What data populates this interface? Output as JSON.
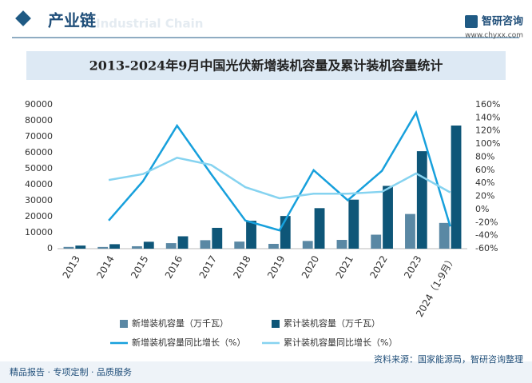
{
  "header": {
    "section": "产业链",
    "section_en": "Industrial Chain",
    "brand": "智研咨询",
    "url": "www.chyxx.com"
  },
  "chart_data": {
    "type": "bar",
    "title": "2013-2024年9月中国光伏新增装机容量及累计装机容量统计",
    "categories": [
      "2013",
      "2014",
      "2015",
      "2016",
      "2017",
      "2018",
      "2019",
      "2020",
      "2021",
      "2022",
      "2023",
      "2024（1-9月）"
    ],
    "series": [
      {
        "name": "新增装机容量（万千瓦）",
        "type": "bar",
        "color": "#5a88a4",
        "values": [
          1095,
          1060,
          1513,
          3454,
          5306,
          4426,
          3011,
          4820,
          5488,
          8741,
          21688,
          16088
        ]
      },
      {
        "name": "累计装机容量（万千瓦）",
        "type": "bar",
        "color": "#0e5678",
        "values": [
          1942,
          2805,
          4318,
          7742,
          13025,
          17446,
          20430,
          25343,
          30656,
          39261,
          60949,
          77000
        ]
      },
      {
        "name": "新增装机容量同比增长（%）",
        "type": "line",
        "axis": "y2",
        "color": "#17a0dc",
        "values": [
          null,
          -17,
          43,
          128,
          54,
          -17,
          -32,
          60,
          14,
          59,
          148,
          -26
        ]
      },
      {
        "name": "累计装机容量同比增长（%）",
        "type": "line",
        "axis": "y2",
        "color": "#86d3f0",
        "values": [
          null,
          45,
          54,
          79,
          68,
          34,
          17,
          24,
          24,
          27,
          55,
          26
        ]
      }
    ],
    "ylim": [
      0,
      90000
    ],
    "yticks": [
      0,
      10000,
      20000,
      30000,
      40000,
      50000,
      60000,
      70000,
      80000,
      90000
    ],
    "y2lim": [
      -60,
      160
    ],
    "y2ticks": [
      {
        "value": -60,
        "label": "-60%"
      },
      {
        "value": -40,
        "label": "-40%"
      },
      {
        "value": -20,
        "label": "-20%"
      },
      {
        "value": 0,
        "label": "0%"
      },
      {
        "value": 20,
        "label": "20%"
      },
      {
        "value": 40,
        "label": "40%"
      },
      {
        "value": 60,
        "label": "60%"
      },
      {
        "value": 80,
        "label": "80%"
      },
      {
        "value": 100,
        "label": "100%"
      },
      {
        "value": 120,
        "label": "120%"
      },
      {
        "value": 140,
        "label": "140%"
      },
      {
        "value": 160,
        "label": "160%"
      }
    ],
    "grid": false
  },
  "footer": {
    "slogan": "精品报告 · 专项定制 · 品质服务",
    "source": "资料来源：国家能源局，智研咨询整理"
  }
}
